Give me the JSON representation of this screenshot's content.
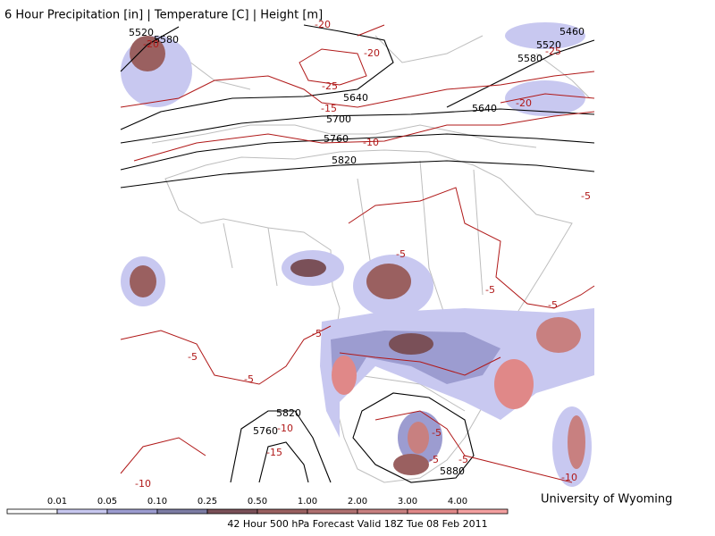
{
  "title": "6 Hour Precipitation [in] | Temperature [C] | Height [m]",
  "credit": "University of Wyoming",
  "footer": "42 Hour 500 hPa Forecast Valid 18Z Tue 08 Feb 2011",
  "colorbar": {
    "labels": [
      "0.01",
      "0.05",
      "0.10",
      "0.25",
      "0.50",
      "1.00",
      "2.00",
      "3.00",
      "4.00"
    ],
    "colors": [
      "#ffffff",
      "#c8c8f0",
      "#9c9cd0",
      "#7c7ca4",
      "#7a5058",
      "#9a6060",
      "#b07070",
      "#c88080",
      "#e08888",
      "#f4a0a0"
    ]
  },
  "height_contour_labels": [
    "5520",
    "5580",
    "5640",
    "5700",
    "5760",
    "5820",
    "5580",
    "5640",
    "5460",
    "5520",
    "5820",
    "5760",
    "5880"
  ],
  "temperature_contour_labels": [
    "-20",
    "-20",
    "-25",
    "-15",
    "-10",
    "-20",
    "-25",
    "-5",
    "-5",
    "-5",
    "-5",
    "-5",
    "-5",
    "-5",
    "-10",
    "-15",
    "-10",
    "-5",
    "-5",
    "-5",
    "-10",
    "-20"
  ]
}
